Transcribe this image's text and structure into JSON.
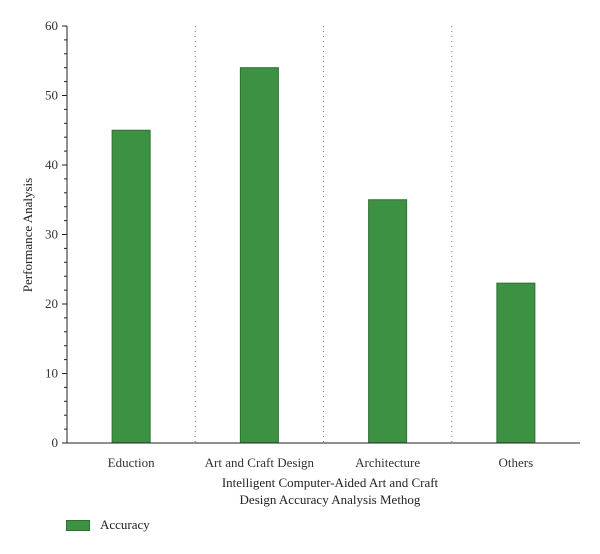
{
  "chart_data": {
    "type": "bar",
    "categories": [
      "Eduction",
      "Art and Craft Design",
      "Architecture",
      "Others"
    ],
    "series": [
      {
        "name": "Accuracy",
        "values": [
          45,
          54,
          35,
          23
        ]
      }
    ],
    "title": "",
    "xlabel_lines": [
      "Intelligent Computer-Aided Art and Craft",
      "Design Accuracy Analysis Methog"
    ],
    "ylabel": "Performance Analysis",
    "ylim": [
      0,
      60
    ],
    "yticks": [
      0,
      10,
      20,
      30,
      40,
      50,
      60
    ],
    "grid": "vertical dotted separators between categories",
    "legend_position": "bottom-left",
    "bar_color": "#3d9142",
    "bar_edge_color": "#2f6f33"
  },
  "legend": {
    "label": "Accuracy"
  }
}
